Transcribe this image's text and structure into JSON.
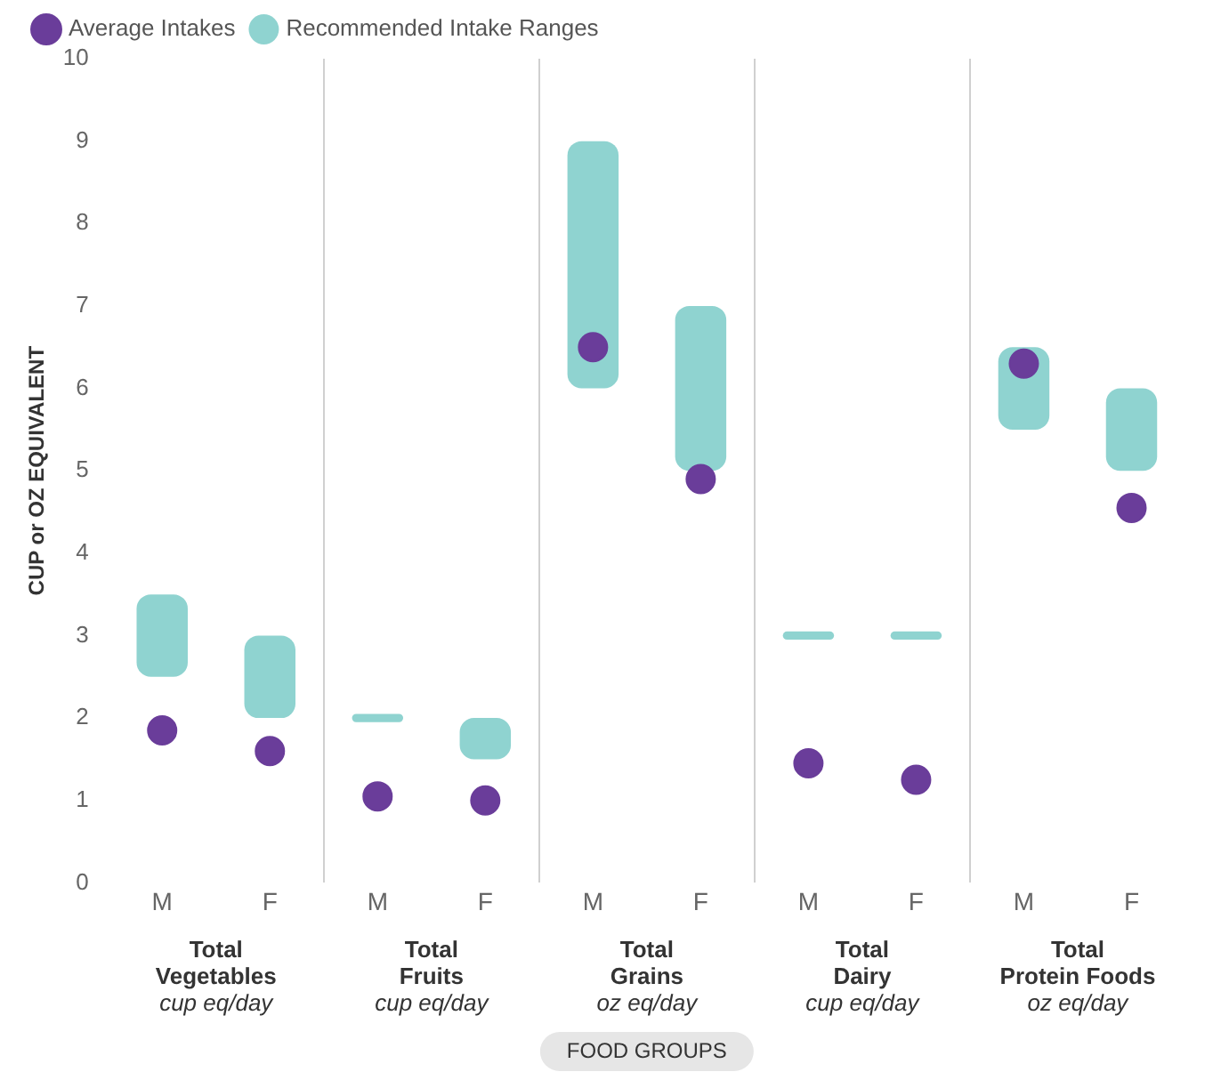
{
  "chart_data": {
    "type": "bar",
    "ylabel": "CUP or OZ EQUIVALENT",
    "categories": [
      "M",
      "F",
      "M",
      "F",
      "M",
      "F",
      "M",
      "F",
      "M",
      "F"
    ],
    "series": [
      {
        "name": "Recommended Intake Ranges",
        "color": "#8fd3d0",
        "base": [
          2.5,
          2,
          1.95,
          1.5,
          6,
          5,
          2.95,
          2.95,
          5.5,
          5
        ],
        "values": [
          1,
          1,
          0.1,
          0.5,
          3,
          2,
          0.1,
          0.1,
          1,
          1
        ]
      },
      {
        "name": "Average Intakes",
        "type": "scatter",
        "color": "#6a3d9a",
        "values": [
          1.85,
          1.6,
          1.05,
          1.0,
          6.5,
          4.9,
          1.45,
          1.25,
          6.3,
          4.55
        ]
      }
    ],
    "annotations": [
      "Total Vegetables",
      "cup eq/day",
      "Total Fruits",
      "cup eq/day",
      "Total Grains",
      "oz eq/day",
      "Total Dairy",
      "cup eq/day",
      "Total Protein Foods",
      "oz eq/day",
      "FOOD GROUPS"
    ],
    "ylim": [
      0,
      10
    ],
    "yticks": [
      0,
      1,
      2,
      3,
      4,
      5,
      6,
      7,
      8,
      9,
      10
    ],
    "grid": "x",
    "legend": "top left",
    "marker": "circle"
  }
}
